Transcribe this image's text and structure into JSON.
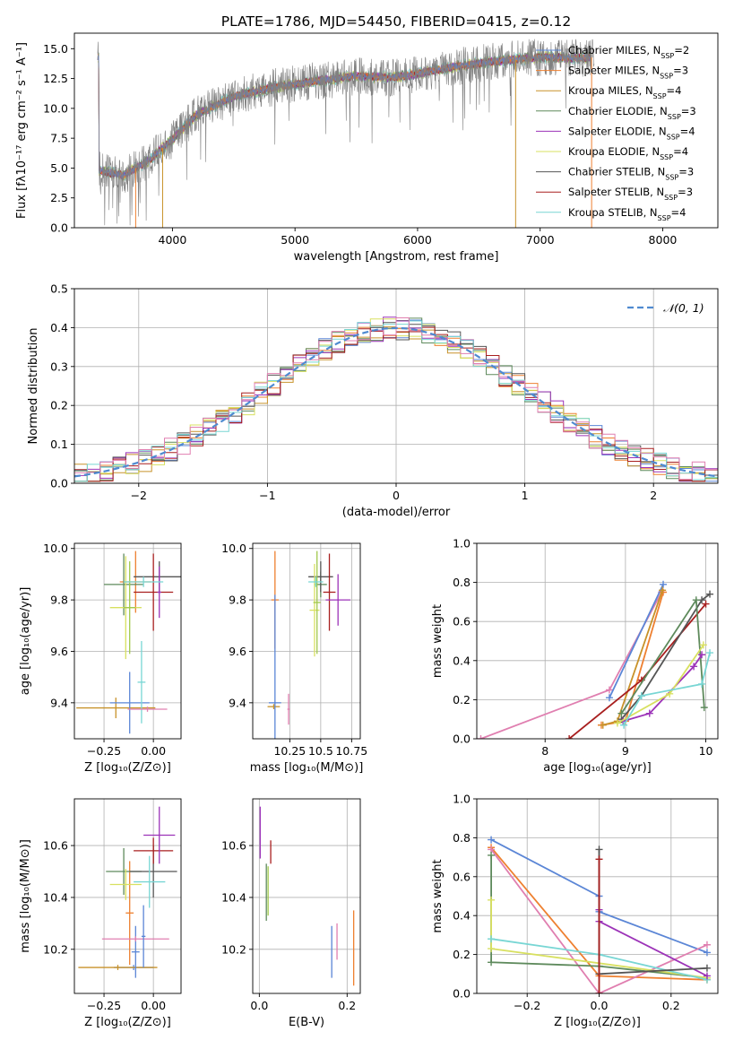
{
  "figure_title": "PLATE=1786, MJD=54450, FIBERID=0415, z=0.12",
  "colors": {
    "Chabrier MILES": "#5b86d6",
    "Salpeter MILES": "#ee8030",
    "Kroupa MILES": "#c8922a",
    "Chabrier ELODIE": "#5e8a5c",
    "Salpeter ELODIE": "#9c33b8",
    "Kroupa ELODIE": "#d8e060",
    "Chabrier STELIB": "#555555",
    "Salpeter STELIB": "#a81f1f",
    "Kroupa STELIB": "#78d6d4",
    "pink": "#e07fb0",
    "olive": "#a0c84a",
    "gaussian": "#4f8ad0"
  },
  "chart_data": [
    {
      "id": "spectrum",
      "type": "line",
      "title": "PLATE=1786, MJD=54450, FIBERID=0415, z=0.12",
      "xlabel": "wavelength [Angstrom, rest frame]",
      "ylabel": "Flux [fλ10⁻¹⁷ erg cm⁻² s⁻¹ A⁻¹]",
      "xlim": [
        3200,
        8450
      ],
      "ylim": [
        0,
        16.3
      ],
      "xticks": [
        4000,
        5000,
        6000,
        7000,
        8000
      ],
      "yticks": [
        0.0,
        2.5,
        5.0,
        7.5,
        10.0,
        12.5,
        15.0
      ],
      "grid": false,
      "legend_position": "top-right",
      "legend": [
        {
          "label": "Chabrier MILES, N",
          "sub": "SSP",
          "suffix": "=2",
          "color": "#5b86d6"
        },
        {
          "label": "Salpeter MILES, N",
          "sub": "SSP",
          "suffix": "=3",
          "color": "#ee8030"
        },
        {
          "label": "Kroupa MILES, N",
          "sub": "SSP",
          "suffix": "=4",
          "color": "#c8922a"
        },
        {
          "label": "Chabrier ELODIE, N",
          "sub": "SSP",
          "suffix": "=3",
          "color": "#5e8a5c"
        },
        {
          "label": "Salpeter ELODIE, N",
          "sub": "SSP",
          "suffix": "=4",
          "color": "#9c33b8"
        },
        {
          "label": "Kroupa ELODIE, N",
          "sub": "SSP",
          "suffix": "=4",
          "color": "#d8e060"
        },
        {
          "label": "Chabrier STELIB, N",
          "sub": "SSP",
          "suffix": "=3",
          "color": "#555555"
        },
        {
          "label": "Salpeter STELIB, N",
          "sub": "SSP",
          "suffix": "=3",
          "color": "#a81f1f"
        },
        {
          "label": "Kroupa STELIB, N",
          "sub": "SSP",
          "suffix": "=4",
          "color": "#78d6d4"
        }
      ],
      "continuum": {
        "x": [
          3400,
          3600,
          3800,
          4000,
          4200,
          4500,
          4800,
          5100,
          5500,
          5800,
          6000,
          6300,
          6600,
          7000,
          7300,
          7450
        ],
        "y": [
          4.8,
          4.4,
          5.6,
          7.4,
          9.5,
          11.0,
          11.7,
          12.2,
          12.7,
          12.6,
          12.9,
          13.5,
          13.9,
          14.3,
          14.2,
          14.3
        ]
      },
      "spikes": [
        {
          "x": 3700,
          "y": 0.0,
          "color": "#ee8030"
        },
        {
          "x": 3920,
          "y": 0.0,
          "color": "#c8922a"
        },
        {
          "x": 6800,
          "y": 0.0,
          "color": "#c8922a"
        },
        {
          "x": 7420,
          "y": 0.0,
          "color": "#ee8030"
        }
      ]
    },
    {
      "id": "residuals",
      "type": "area",
      "xlabel": "(data-model)/error",
      "ylabel": "Normed distribution",
      "xlim": [
        -2.5,
        2.5
      ],
      "ylim": [
        0,
        0.5
      ],
      "xticks": [
        -2,
        -1,
        0,
        1,
        2
      ],
      "yticks": [
        0.0,
        0.1,
        0.2,
        0.3,
        0.4,
        0.5
      ],
      "grid": true,
      "legend_position": "top-right",
      "legend": [
        {
          "label": "𝒩(0, 1)",
          "color": "#4f8ad0"
        }
      ],
      "bins": {
        "start": -2.5,
        "width": 0.1,
        "count": 50
      }
    },
    {
      "id": "age_vs_Z",
      "type": "scatter",
      "xlabel": "Z [log₁₀(Z/Z⊙)]",
      "ylabel": "age  [log₁₀(age/yr)]",
      "xlim": [
        -0.4,
        0.14
      ],
      "ylim": [
        9.26,
        10.02
      ],
      "xticks": [
        -0.25,
        0.0
      ],
      "yticks": [
        9.4,
        9.6,
        9.8,
        10.0
      ],
      "grid": true,
      "points": [
        {
          "x": -0.09,
          "y": 9.87,
          "ex": 0.08,
          "ey": 0.12,
          "color": "#ee8030"
        },
        {
          "x": -0.19,
          "y": 9.38,
          "ex": 0.2,
          "ey": 0.04,
          "color": "#c8922a"
        },
        {
          "x": -0.12,
          "y": 9.4,
          "ex": 0.1,
          "ey": 0.12,
          "color": "#5b86d6"
        },
        {
          "x": -0.15,
          "y": 9.86,
          "ex": 0.1,
          "ey": 0.12,
          "color": "#5e8a5c"
        },
        {
          "x": 0.03,
          "y": 9.89,
          "ex": 0.13,
          "ey": 0.06,
          "color": "#555555"
        },
        {
          "x": 0.0,
          "y": 9.83,
          "ex": 0.1,
          "ey": 0.15,
          "color": "#a81f1f"
        },
        {
          "x": 0.03,
          "y": 9.83,
          "ex": 0.01,
          "ey": 0.1,
          "color": "#9c33b8"
        },
        {
          "x": -0.14,
          "y": 9.77,
          "ex": 0.08,
          "ey": 0.2,
          "color": "#d8e060"
        },
        {
          "x": -0.12,
          "y": 9.77,
          "ex": 0.03,
          "ey": 0.18,
          "color": "#a0c84a"
        },
        {
          "x": -0.06,
          "y": 9.48,
          "ex": 0.02,
          "ey": 0.16,
          "color": "#78d6d4"
        },
        {
          "x": -0.03,
          "y": 9.375,
          "ex": 0.1,
          "ey": 0.01,
          "color": "#e07fb0"
        },
        {
          "x": -0.05,
          "y": 9.87,
          "ex": 0.1,
          "ey": 0.02,
          "color": "#78d6d4"
        }
      ]
    },
    {
      "id": "age_vs_mass",
      "type": "scatter",
      "xlabel": "mass [log₁₀(M/M⊙)]",
      "ylabel": "",
      "xlim": [
        9.95,
        10.82
      ],
      "ylim": [
        9.26,
        10.02
      ],
      "xticks": [
        10.25,
        10.5,
        10.75
      ],
      "yticks": [
        9.4,
        9.6,
        9.8,
        10.0
      ],
      "grid": true,
      "points": [
        {
          "x": 10.13,
          "y": 9.8,
          "ex": 0.03,
          "ey": 0.19,
          "color": "#ee8030"
        },
        {
          "x": 10.12,
          "y": 9.385,
          "ex": 0.05,
          "ey": 0.01,
          "color": "#c8922a"
        },
        {
          "x": 10.13,
          "y": 9.4,
          "ex": 0.05,
          "ey": 0.42,
          "color": "#5b86d6"
        },
        {
          "x": 10.5,
          "y": 9.86,
          "ex": 0.05,
          "ey": 0.05,
          "color": "#5e8a5c"
        },
        {
          "x": 10.5,
          "y": 9.89,
          "ex": 0.1,
          "ey": 0.06,
          "color": "#555555"
        },
        {
          "x": 10.57,
          "y": 9.83,
          "ex": 0.05,
          "ey": 0.15,
          "color": "#a81f1f"
        },
        {
          "x": 10.64,
          "y": 9.8,
          "ex": 0.1,
          "ey": 0.1,
          "color": "#9c33b8"
        },
        {
          "x": 10.45,
          "y": 9.76,
          "ex": 0.04,
          "ey": 0.18,
          "color": "#d8e060"
        },
        {
          "x": 10.47,
          "y": 9.79,
          "ex": 0.03,
          "ey": 0.2,
          "color": "#a0c84a"
        },
        {
          "x": 10.46,
          "y": 9.87,
          "ex": 0.06,
          "ey": 0.02,
          "color": "#78d6d4"
        },
        {
          "x": 10.24,
          "y": 9.375,
          "ex": 0.01,
          "ey": 0.06,
          "color": "#e07fb0"
        }
      ]
    },
    {
      "id": "weight_vs_age",
      "type": "line",
      "xlabel": "age  [log₁₀(age/yr)]",
      "ylabel": "mass weight",
      "xlim": [
        7.15,
        10.15
      ],
      "ylim": [
        0,
        1.0
      ],
      "xticks": [
        8,
        9,
        10
      ],
      "yticks": [
        0.0,
        0.2,
        0.4,
        0.6,
        0.8,
        1.0
      ],
      "grid": true,
      "series": [
        {
          "color": "#e07fb0",
          "x": [
            7.2,
            8.8,
            9.45
          ],
          "y": [
            0.0,
            0.25,
            0.75
          ]
        },
        {
          "color": "#5b86d6",
          "x": [
            8.8,
            9.47
          ],
          "y": [
            0.21,
            0.79
          ]
        },
        {
          "color": "#ee8030",
          "x": [
            8.7,
            9.0,
            9.47
          ],
          "y": [
            0.07,
            0.09,
            0.75
          ]
        },
        {
          "color": "#c8922a",
          "x": [
            8.72,
            8.9,
            9.46
          ],
          "y": [
            0.07,
            0.09,
            0.76
          ]
        },
        {
          "color": "#a81f1f",
          "x": [
            8.3,
            9.2,
            10.0
          ],
          "y": [
            0.0,
            0.3,
            0.69
          ]
        },
        {
          "color": "#555555",
          "x": [
            8.95,
            9.2,
            9.95,
            10.05
          ],
          "y": [
            0.1,
            0.22,
            0.71,
            0.74
          ]
        },
        {
          "color": "#5e8a5c",
          "x": [
            8.95,
            9.88,
            9.98
          ],
          "y": [
            0.13,
            0.71,
            0.16
          ]
        },
        {
          "color": "#9c33b8",
          "x": [
            8.97,
            9.3,
            9.85,
            9.95
          ],
          "y": [
            0.09,
            0.13,
            0.37,
            0.43
          ]
        },
        {
          "color": "#d8e060",
          "x": [
            8.9,
            9.55,
            9.97
          ],
          "y": [
            0.08,
            0.23,
            0.48
          ]
        },
        {
          "color": "#78d6d4",
          "x": [
            8.98,
            9.2,
            9.95,
            10.05
          ],
          "y": [
            0.07,
            0.22,
            0.28,
            0.44
          ]
        }
      ]
    },
    {
      "id": "mass_vs_Z",
      "type": "scatter",
      "xlabel": "Z [log₁₀(Z/Z⊙)]",
      "ylabel": "mass [log₁₀(M/M⊙)]",
      "xlim": [
        -0.4,
        0.14
      ],
      "ylim": [
        10.03,
        10.78
      ],
      "xticks": [
        -0.25,
        0.0
      ],
      "yticks": [
        10.2,
        10.4,
        10.6
      ],
      "grid": true,
      "points": [
        {
          "x": -0.1,
          "y": 10.13,
          "ex": 0.1,
          "ey": 0.01,
          "color": "#5b86d6"
        },
        {
          "x": -0.18,
          "y": 10.13,
          "ex": 0.2,
          "ey": 0.01,
          "color": "#c8922a"
        },
        {
          "x": -0.12,
          "y": 10.34,
          "ex": 0.02,
          "ey": 0.2,
          "color": "#ee8030"
        },
        {
          "x": -0.09,
          "y": 10.19,
          "ex": 0.02,
          "ey": 0.1,
          "color": "#5b86d6"
        },
        {
          "x": -0.15,
          "y": 10.5,
          "ex": 0.09,
          "ey": 0.09,
          "color": "#5e8a5c"
        },
        {
          "x": 0.0,
          "y": 10.5,
          "ex": 0.12,
          "ey": 0.1,
          "color": "#555555"
        },
        {
          "x": 0.0,
          "y": 10.58,
          "ex": 0.1,
          "ey": 0.05,
          "color": "#a81f1f"
        },
        {
          "x": 0.03,
          "y": 10.64,
          "ex": 0.08,
          "ey": 0.11,
          "color": "#9c33b8"
        },
        {
          "x": -0.14,
          "y": 10.45,
          "ex": 0.08,
          "ey": 0.06,
          "color": "#d8e060"
        },
        {
          "x": -0.02,
          "y": 10.46,
          "ex": 0.08,
          "ey": 0.1,
          "color": "#78d6d4"
        },
        {
          "x": -0.09,
          "y": 10.24,
          "ex": 0.17,
          "ey": 0.01,
          "color": "#e07fb0"
        },
        {
          "x": -0.05,
          "y": 10.25,
          "ex": 0.01,
          "ey": 0.12,
          "color": "#5b86d6"
        }
      ]
    },
    {
      "id": "mass_vs_EBV",
      "type": "scatter",
      "xlabel": "E(B-V)",
      "ylabel": "",
      "xlim": [
        -0.015,
        0.23
      ],
      "ylim": [
        10.03,
        10.78
      ],
      "xticks": [
        0.0,
        0.2
      ],
      "yticks": [
        10.2,
        10.4,
        10.6
      ],
      "grid": true,
      "segments": [
        {
          "x": 0.002,
          "y0": 10.55,
          "y1": 10.75,
          "color": "#9c33b8"
        },
        {
          "x": 0.026,
          "y0": 10.53,
          "y1": 10.62,
          "color": "#a81f1f"
        },
        {
          "x": 0.016,
          "y0": 10.31,
          "y1": 10.53,
          "color": "#5e8a5c"
        },
        {
          "x": 0.02,
          "y0": 10.33,
          "y1": 10.52,
          "color": "#a0c84a"
        },
        {
          "x": 0.165,
          "y0": 10.09,
          "y1": 10.29,
          "color": "#5b86d6"
        },
        {
          "x": 0.177,
          "y0": 10.16,
          "y1": 10.3,
          "color": "#e07fb0"
        },
        {
          "x": 0.215,
          "y0": 10.06,
          "y1": 10.35,
          "color": "#ee8030"
        }
      ]
    },
    {
      "id": "weight_vs_Z",
      "type": "line",
      "xlabel": "Z [log₁₀(Z/Z⊙)]",
      "ylabel": "mass weight",
      "xlim": [
        -0.34,
        0.33
      ],
      "ylim": [
        0,
        1.0
      ],
      "xticks": [
        -0.2,
        0.0,
        0.2
      ],
      "yticks": [
        0.0,
        0.2,
        0.4,
        0.6,
        0.8,
        1.0
      ],
      "grid": true,
      "series": [
        {
          "color": "#5b86d6",
          "x": [
            -0.3,
            0.0,
            0.0,
            0.3
          ],
          "y": [
            0.79,
            0.5,
            0.42,
            0.21
          ]
        },
        {
          "color": "#ee8030",
          "x": [
            -0.3,
            0.0,
            0.3
          ],
          "y": [
            0.75,
            0.09,
            0.07
          ]
        },
        {
          "color": "#e07fb0",
          "x": [
            -0.3,
            0.0,
            0.3
          ],
          "y": [
            0.74,
            0.0,
            0.25
          ]
        },
        {
          "color": "#5e8a5c",
          "x": [
            -0.3,
            -0.3,
            0.0,
            0.3
          ],
          "y": [
            0.71,
            0.16,
            0.14,
            0.08
          ]
        },
        {
          "color": "#d8e060",
          "x": [
            -0.3,
            -0.3,
            0.3
          ],
          "y": [
            0.48,
            0.23,
            0.08
          ]
        },
        {
          "color": "#78d6d4",
          "x": [
            -0.3,
            0.0,
            0.3
          ],
          "y": [
            0.28,
            0.2,
            0.07
          ]
        },
        {
          "color": "#9c33b8",
          "x": [
            0.0,
            0.0,
            0.3
          ],
          "y": [
            0.43,
            0.37,
            0.09
          ]
        },
        {
          "color": "#555555",
          "x": [
            0.0,
            0.0,
            0.3
          ],
          "y": [
            0.74,
            0.1,
            0.13
          ]
        },
        {
          "color": "#a81f1f",
          "x": [
            0.0,
            0.0
          ],
          "y": [
            0.69,
            0.0
          ]
        }
      ]
    }
  ]
}
